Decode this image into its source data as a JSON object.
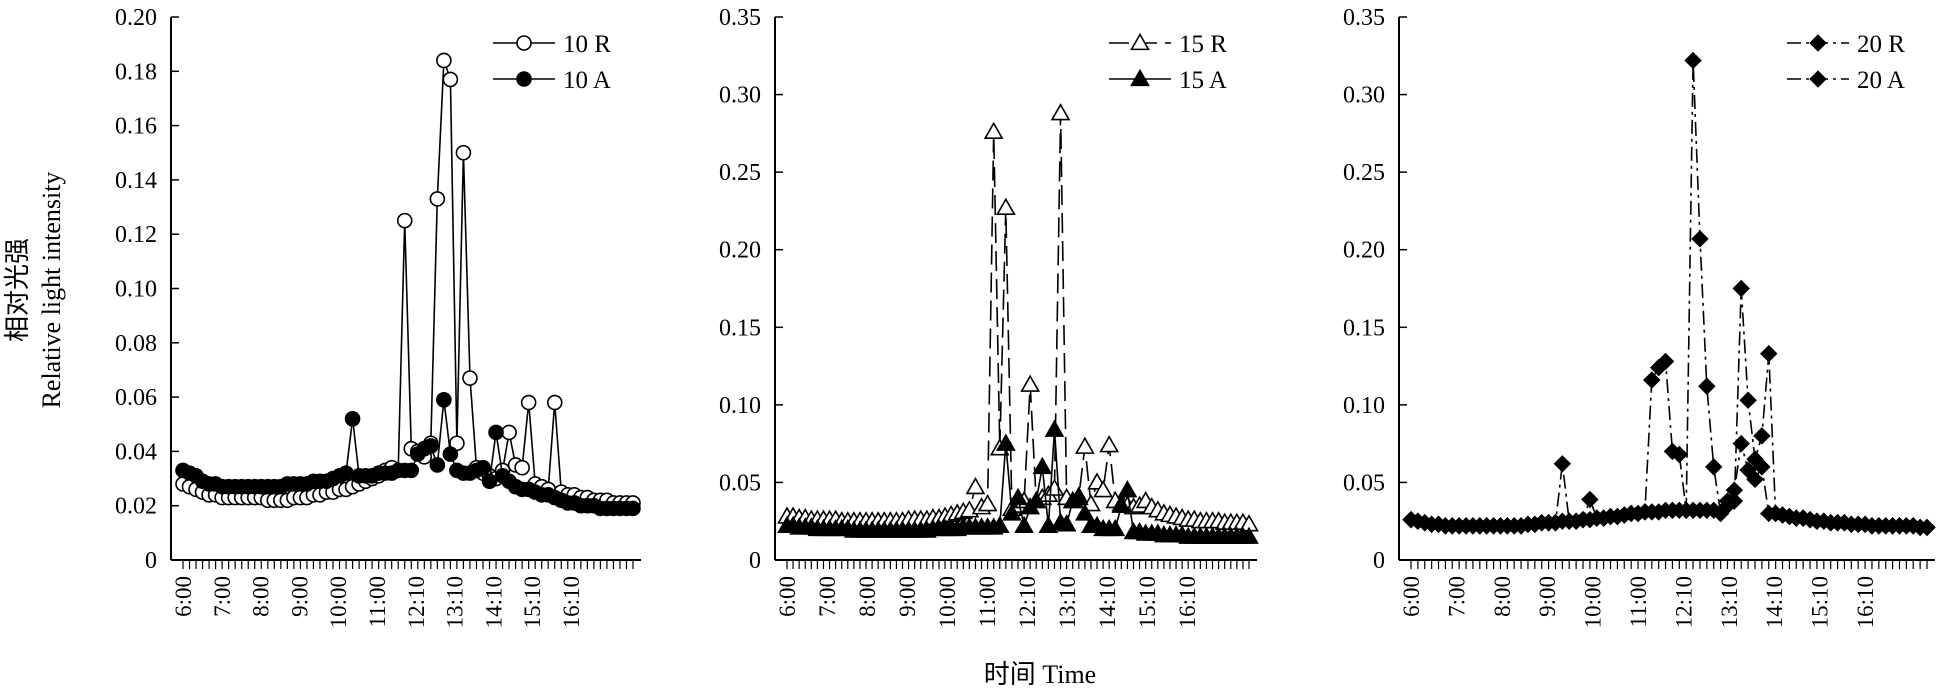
{
  "figure": {
    "ylabel_cn": "相对光强",
    "ylabel_en": "Relative light intensity",
    "xlabel": "时间 Time"
  },
  "colors": {
    "ink": "#000000",
    "background": "#ffffff"
  },
  "chart_data": [
    {
      "type": "line",
      "xlabel": "时间 Time",
      "ylabel": "相对光强 Relative light intensity",
      "x_tick_labels": [
        "6:00",
        "7:00",
        "8:00",
        "9:00",
        "10:00",
        "11:00",
        "12:10",
        "13:10",
        "14:10",
        "15:10",
        "16:10"
      ],
      "ylim": [
        0,
        0.2
      ],
      "y_ticks": [
        0,
        0.02,
        0.04,
        0.06,
        0.08,
        0.1,
        0.12,
        0.14,
        0.16,
        0.18,
        0.2
      ],
      "y_tick_labels": [
        "0",
        "0.02",
        "0.04",
        "0.06",
        "0.08",
        "0.10",
        "0.12",
        "0.14",
        "0.16",
        "0.18",
        "0.20"
      ],
      "series": [
        {
          "name": "10 R",
          "marker": "open-circle",
          "line": "solid",
          "values": [
            0.028,
            0.027,
            0.026,
            0.025,
            0.024,
            0.024,
            0.023,
            0.023,
            0.023,
            0.023,
            0.023,
            0.023,
            0.023,
            0.022,
            0.022,
            0.022,
            0.022,
            0.023,
            0.023,
            0.023,
            0.024,
            0.024,
            0.025,
            0.025,
            0.026,
            0.026,
            0.027,
            0.028,
            0.029,
            0.03,
            0.031,
            0.033,
            0.034,
            0.033,
            0.125,
            0.041,
            0.04,
            0.038,
            0.043,
            0.133,
            0.184,
            0.177,
            0.043,
            0.15,
            0.067,
            0.034,
            0.032,
            0.031,
            0.03,
            0.033,
            0.047,
            0.035,
            0.034,
            0.058,
            0.028,
            0.027,
            0.026,
            0.058,
            0.025,
            0.024,
            0.024,
            0.023,
            0.023,
            0.022,
            0.022,
            0.022,
            0.021,
            0.021,
            0.021,
            0.021
          ]
        },
        {
          "name": "10 A",
          "marker": "filled-circle",
          "line": "solid",
          "values": [
            0.033,
            0.032,
            0.031,
            0.029,
            0.028,
            0.028,
            0.027,
            0.027,
            0.027,
            0.027,
            0.027,
            0.027,
            0.027,
            0.027,
            0.027,
            0.027,
            0.028,
            0.028,
            0.028,
            0.028,
            0.029,
            0.029,
            0.029,
            0.03,
            0.031,
            0.032,
            0.052,
            0.031,
            0.031,
            0.031,
            0.032,
            0.032,
            0.032,
            0.033,
            0.033,
            0.033,
            0.039,
            0.041,
            0.042,
            0.035,
            0.059,
            0.039,
            0.033,
            0.032,
            0.032,
            0.033,
            0.034,
            0.029,
            0.047,
            0.031,
            0.029,
            0.027,
            0.026,
            0.026,
            0.025,
            0.024,
            0.024,
            0.023,
            0.022,
            0.021,
            0.021,
            0.02,
            0.02,
            0.02,
            0.019,
            0.019,
            0.019,
            0.019,
            0.019,
            0.019
          ]
        }
      ],
      "legend_position": "top-right"
    },
    {
      "type": "line",
      "xlabel": "时间 Time",
      "x_tick_labels": [
        "6:00",
        "7:00",
        "8:00",
        "9:00",
        "10:00",
        "11:00",
        "12:10",
        "13:10",
        "14:10",
        "15:10",
        "16:10"
      ],
      "ylim": [
        0,
        0.35
      ],
      "y_ticks": [
        0,
        0.05,
        0.1,
        0.15,
        0.2,
        0.25,
        0.3,
        0.35
      ],
      "y_tick_labels": [
        "0",
        "0.05",
        "0.10",
        "0.15",
        "0.20",
        "0.25",
        "0.30",
        "0.35"
      ],
      "series": [
        {
          "name": "15 R",
          "marker": "open-triangle",
          "line": "long-dash",
          "values": [
            0.028,
            0.028,
            0.027,
            0.027,
            0.026,
            0.026,
            0.026,
            0.026,
            0.026,
            0.025,
            0.025,
            0.025,
            0.025,
            0.025,
            0.025,
            0.025,
            0.025,
            0.025,
            0.025,
            0.025,
            0.026,
            0.026,
            0.026,
            0.026,
            0.027,
            0.027,
            0.028,
            0.029,
            0.03,
            0.031,
            0.032,
            0.047,
            0.034,
            0.036,
            0.276,
            0.072,
            0.227,
            0.033,
            0.035,
            0.038,
            0.113,
            0.038,
            0.04,
            0.042,
            0.046,
            0.288,
            0.04,
            0.038,
            0.041,
            0.073,
            0.036,
            0.05,
            0.045,
            0.074,
            0.038,
            0.036,
            0.035,
            0.034,
            0.035,
            0.038,
            0.034,
            0.032,
            0.03,
            0.029,
            0.028,
            0.027,
            0.026,
            0.026,
            0.025,
            0.025,
            0.025,
            0.025,
            0.024,
            0.024,
            0.024,
            0.024,
            0.023
          ]
        },
        {
          "name": "15 A",
          "marker": "filled-triangle",
          "line": "solid",
          "values": [
            0.022,
            0.022,
            0.021,
            0.021,
            0.021,
            0.02,
            0.02,
            0.02,
            0.02,
            0.02,
            0.02,
            0.019,
            0.019,
            0.019,
            0.019,
            0.019,
            0.019,
            0.019,
            0.019,
            0.019,
            0.019,
            0.019,
            0.019,
            0.019,
            0.02,
            0.02,
            0.02,
            0.02,
            0.02,
            0.021,
            0.021,
            0.021,
            0.021,
            0.021,
            0.021,
            0.022,
            0.075,
            0.03,
            0.04,
            0.022,
            0.034,
            0.038,
            0.06,
            0.022,
            0.084,
            0.024,
            0.023,
            0.038,
            0.04,
            0.03,
            0.022,
            0.022,
            0.02,
            0.02,
            0.02,
            0.035,
            0.045,
            0.018,
            0.018,
            0.017,
            0.017,
            0.017,
            0.016,
            0.016,
            0.016,
            0.016,
            0.015,
            0.015,
            0.015,
            0.015,
            0.015,
            0.015,
            0.015,
            0.015,
            0.015,
            0.015,
            0.015
          ]
        }
      ],
      "legend_position": "top-right"
    },
    {
      "type": "line",
      "xlabel": "时间 Time",
      "x_tick_labels": [
        "6:00",
        "7:00",
        "8:00",
        "9:00",
        "10:00",
        "11:00",
        "12:10",
        "13:10",
        "14:10",
        "15:10",
        "16:10"
      ],
      "ylim": [
        0,
        0.35
      ],
      "y_ticks": [
        0,
        0.05,
        0.1,
        0.15,
        0.2,
        0.25,
        0.3,
        0.35
      ],
      "y_tick_labels": [
        "0",
        "0.05",
        "0.10",
        "0.15",
        "0.20",
        "0.25",
        "0.30",
        "0.35"
      ],
      "series": [
        {
          "name": "20 R",
          "marker": "filled-diamond",
          "line": "dash-dot",
          "values": [
            0.026,
            0.025,
            0.024,
            0.023,
            0.023,
            0.022,
            0.022,
            0.022,
            0.022,
            0.022,
            0.022,
            0.022,
            0.022,
            0.022,
            0.022,
            0.022,
            0.022,
            0.023,
            0.023,
            0.024,
            0.024,
            0.024,
            0.062,
            0.025,
            0.025,
            0.026,
            0.039,
            0.027,
            0.027,
            0.028,
            0.028,
            0.029,
            0.03,
            0.03,
            0.031,
            0.116,
            0.124,
            0.128,
            0.07,
            0.068,
            0.032,
            0.322,
            0.207,
            0.112,
            0.06,
            0.03,
            0.035,
            0.038,
            0.175,
            0.103,
            0.065,
            0.08,
            0.133,
            0.03,
            0.029,
            0.028,
            0.027,
            0.027,
            0.026,
            0.025,
            0.025,
            0.024,
            0.024,
            0.024,
            0.023,
            0.023,
            0.023,
            0.022,
            0.022,
            0.022,
            0.022,
            0.022,
            0.022,
            0.022,
            0.021,
            0.021
          ]
        },
        {
          "name": "20 A",
          "marker": "filled-diamond",
          "line": "dash-dot",
          "values": [
            0.026,
            0.025,
            0.024,
            0.023,
            0.023,
            0.022,
            0.022,
            0.022,
            0.022,
            0.022,
            0.022,
            0.022,
            0.022,
            0.022,
            0.022,
            0.022,
            0.022,
            0.023,
            0.023,
            0.024,
            0.024,
            0.024,
            0.025,
            0.025,
            0.025,
            0.026,
            0.026,
            0.027,
            0.027,
            0.028,
            0.028,
            0.029,
            0.03,
            0.03,
            0.031,
            0.031,
            0.031,
            0.032,
            0.032,
            0.032,
            0.032,
            0.032,
            0.032,
            0.032,
            0.032,
            0.03,
            0.038,
            0.045,
            0.075,
            0.058,
            0.052,
            0.06,
            0.03,
            0.03,
            0.029,
            0.028,
            0.027,
            0.027,
            0.026,
            0.025,
            0.025,
            0.024,
            0.024,
            0.024,
            0.023,
            0.023,
            0.023,
            0.022,
            0.022,
            0.022,
            0.022,
            0.022,
            0.022,
            0.022,
            0.021,
            0.021
          ]
        }
      ],
      "legend_position": "top-right"
    }
  ]
}
